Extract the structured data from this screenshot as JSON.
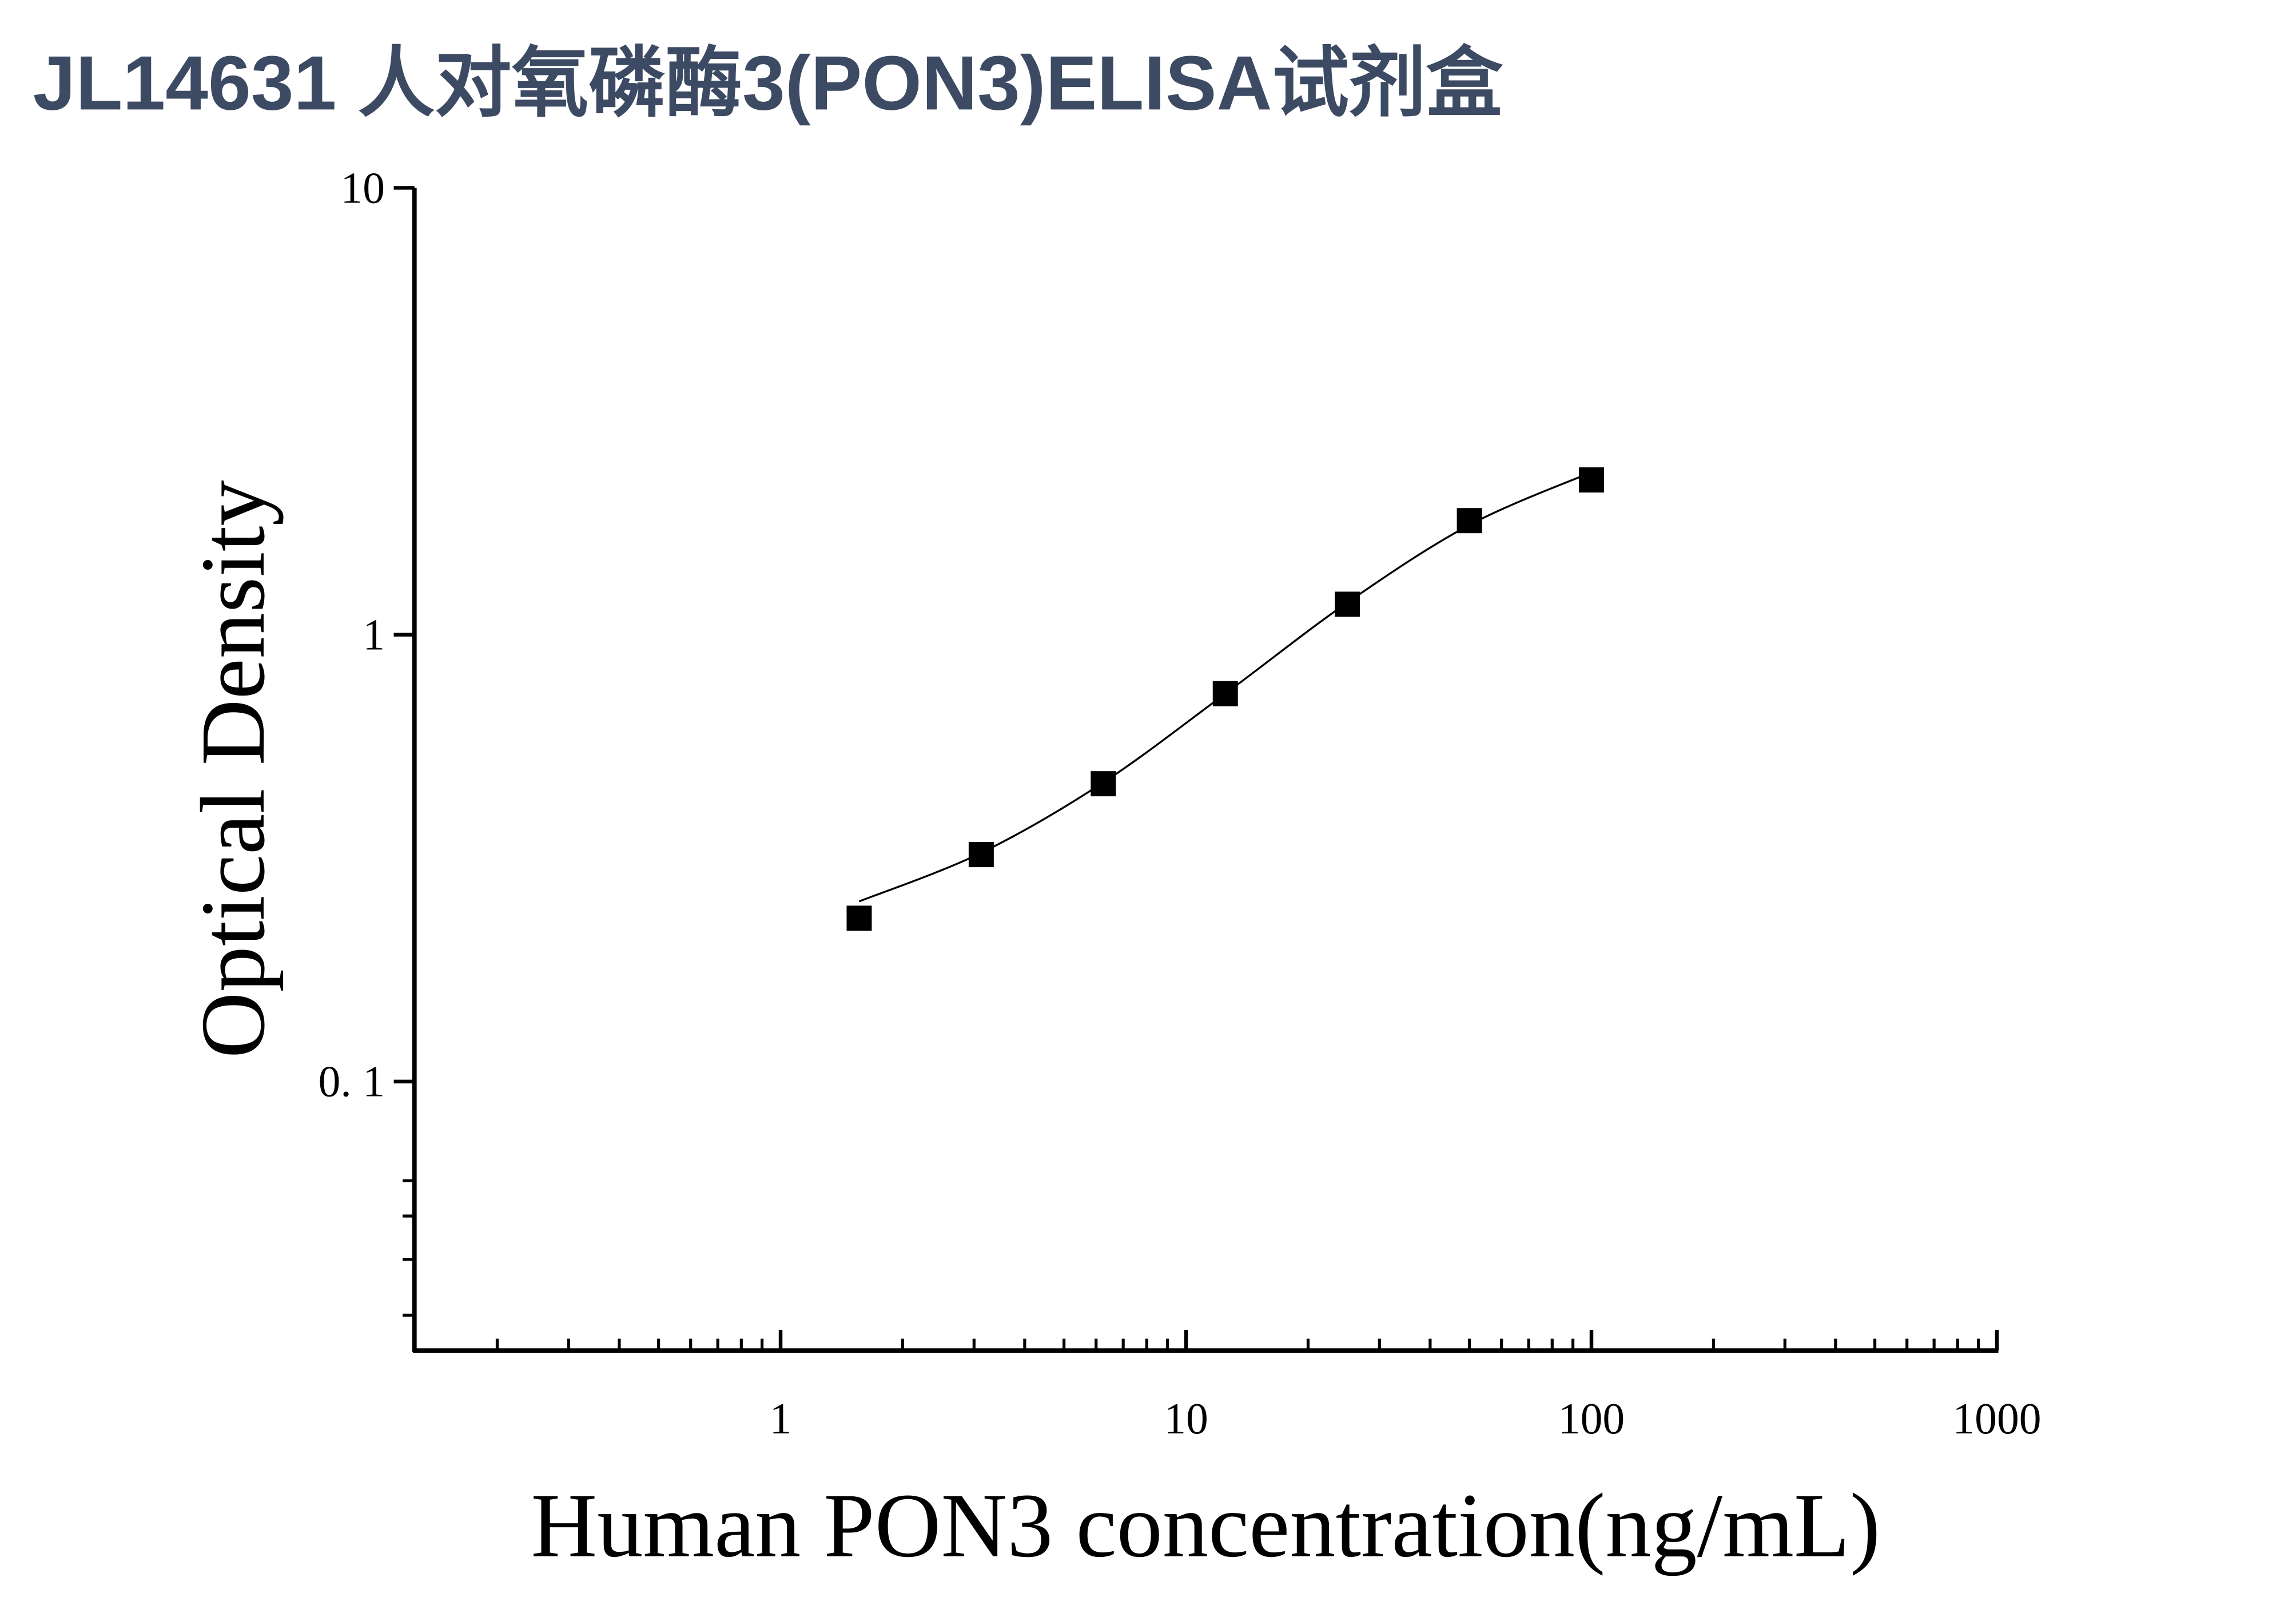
{
  "chart_data": {
    "type": "scatter",
    "title": "JL14631 人对氧磷酶3(PON3)ELISA试剂盒",
    "x_label": "Human PON3 concentration(ng/mL)",
    "y_label": "Optical Density",
    "x": [
      1.5625,
      3.125,
      6.25,
      12.5,
      25,
      50,
      100
    ],
    "values": [
      0.232,
      0.322,
      0.464,
      0.738,
      1.17,
      1.8,
      2.22
    ],
    "color": "#000000",
    "fit": {
      "x": [
        1.5625,
        3.125,
        6.25,
        12.5,
        25,
        50,
        100
      ],
      "values": [
        0.253,
        0.325,
        0.467,
        0.738,
        1.18,
        1.76,
        2.31
      ]
    },
    "xscale": "log",
    "yscale": "log",
    "xlim": [
      0.125,
      1000
    ],
    "ylim": [
      0.025,
      10
    ],
    "xticks": [
      1,
      10,
      100,
      1000
    ],
    "yticks": [
      10,
      1,
      {
        "value": 0.1,
        "label": "0. 1"
      }
    ],
    "xminorticks": [
      0.2,
      0.3,
      0.4,
      0.5,
      0.6,
      0.7,
      0.8,
      0.9,
      2,
      3,
      4,
      5,
      6,
      7,
      8,
      9,
      20,
      30,
      40,
      50,
      60,
      70,
      80,
      90,
      200,
      300,
      400,
      500,
      600,
      700,
      800,
      900
    ],
    "yminorticks": [
      0.03,
      0.04,
      0.05,
      0.06
    ]
  }
}
